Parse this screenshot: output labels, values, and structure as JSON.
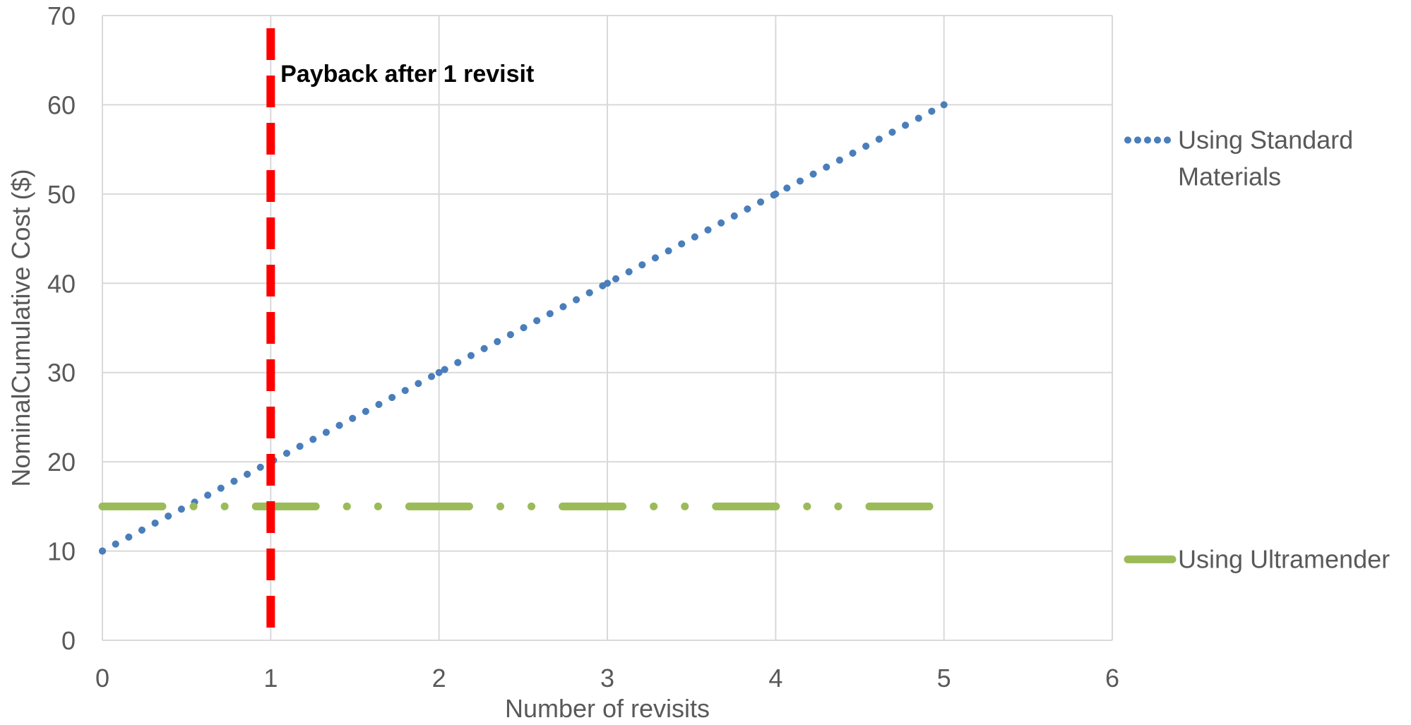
{
  "chart_data": {
    "type": "line",
    "title": "",
    "xlabel": "Number of revisits",
    "ylabel": "NominalCumulative Cost ($)",
    "xlim": [
      0,
      6
    ],
    "ylim": [
      0,
      70
    ],
    "x_ticks": [
      0,
      1,
      2,
      3,
      4,
      5,
      6
    ],
    "y_ticks": [
      0,
      10,
      20,
      30,
      40,
      50,
      60,
      70
    ],
    "grid": true,
    "legend_position": "right",
    "series": [
      {
        "name": "Using Standard Materials",
        "legend_lines": [
          "Using Standard",
          "Materials"
        ],
        "x": [
          0,
          1,
          2,
          3,
          4,
          5
        ],
        "y": [
          10,
          20,
          30,
          40,
          50,
          60
        ],
        "color": "#4a7ebb",
        "style": "dotted"
      },
      {
        "name": "Using Ultramender",
        "legend_lines": [
          "Using Ultramender"
        ],
        "x": [
          0,
          1,
          2,
          3,
          4,
          5
        ],
        "y": [
          15,
          15,
          15,
          15,
          15,
          15
        ],
        "color": "#9bbb59",
        "style": "dash-dot-dot"
      }
    ],
    "vertical_line": {
      "x": 1,
      "color": "#ff0000",
      "style": "dashed"
    },
    "annotation": {
      "text": "Payback after 1 revisit",
      "x": 1.1,
      "y": 63.5
    }
  }
}
